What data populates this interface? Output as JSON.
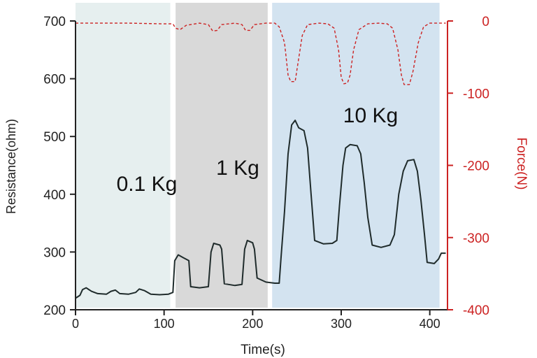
{
  "chart_data": {
    "type": "line",
    "xlabel": "Time(s)",
    "ylabel_left": "Resistance(ohm)",
    "ylabel_right": "Force(N)",
    "xlim": [
      0,
      420
    ],
    "ylim_left": [
      200,
      700
    ],
    "ylim_right": [
      -400,
      0
    ],
    "x_ticks": [
      0,
      100,
      200,
      300,
      400
    ],
    "y_left_ticks": [
      200,
      300,
      400,
      500,
      600,
      700
    ],
    "y_right_ticks": [
      0,
      -100,
      -200,
      -300,
      -400
    ],
    "grid": false,
    "regions": [
      {
        "label": "0.1 Kg",
        "x_start": 0,
        "x_end": 107,
        "color": "#e6efef"
      },
      {
        "label": "1 Kg",
        "x_start": 113,
        "x_end": 217,
        "color": "#d9d9d9"
      },
      {
        "label": "10 Kg",
        "x_start": 222,
        "x_end": 411,
        "color": "#d3e3f0"
      }
    ],
    "series": [
      {
        "axis": "left",
        "color": "#1f2b2b",
        "style": "solid",
        "points": [
          [
            0,
            220
          ],
          [
            5,
            225
          ],
          [
            8,
            235
          ],
          [
            12,
            238
          ],
          [
            18,
            232
          ],
          [
            25,
            228
          ],
          [
            35,
            227
          ],
          [
            40,
            232
          ],
          [
            45,
            234
          ],
          [
            50,
            228
          ],
          [
            60,
            227
          ],
          [
            68,
            230
          ],
          [
            72,
            236
          ],
          [
            78,
            233
          ],
          [
            85,
            227
          ],
          [
            95,
            226
          ],
          [
            105,
            227
          ],
          [
            110,
            230
          ],
          [
            112,
            285
          ],
          [
            116,
            295
          ],
          [
            122,
            290
          ],
          [
            128,
            285
          ],
          [
            130,
            240
          ],
          [
            140,
            238
          ],
          [
            150,
            240
          ],
          [
            153,
            300
          ],
          [
            156,
            315
          ],
          [
            163,
            312
          ],
          [
            165,
            305
          ],
          [
            168,
            245
          ],
          [
            180,
            242
          ],
          [
            188,
            244
          ],
          [
            191,
            305
          ],
          [
            194,
            320
          ],
          [
            200,
            316
          ],
          [
            202,
            305
          ],
          [
            205,
            255
          ],
          [
            215,
            248
          ],
          [
            225,
            246
          ],
          [
            230,
            246
          ],
          [
            232,
            290
          ],
          [
            236,
            370
          ],
          [
            240,
            470
          ],
          [
            244,
            520
          ],
          [
            248,
            528
          ],
          [
            252,
            515
          ],
          [
            258,
            510
          ],
          [
            262,
            480
          ],
          [
            266,
            400
          ],
          [
            270,
            320
          ],
          [
            280,
            314
          ],
          [
            290,
            315
          ],
          [
            295,
            320
          ],
          [
            298,
            380
          ],
          [
            302,
            450
          ],
          [
            305,
            480
          ],
          [
            310,
            486
          ],
          [
            318,
            484
          ],
          [
            322,
            470
          ],
          [
            326,
            420
          ],
          [
            330,
            360
          ],
          [
            335,
            312
          ],
          [
            345,
            308
          ],
          [
            355,
            312
          ],
          [
            360,
            330
          ],
          [
            365,
            400
          ],
          [
            370,
            440
          ],
          [
            375,
            458
          ],
          [
            382,
            460
          ],
          [
            386,
            440
          ],
          [
            390,
            390
          ],
          [
            394,
            330
          ],
          [
            397,
            282
          ],
          [
            405,
            280
          ],
          [
            410,
            288
          ],
          [
            413,
            298
          ],
          [
            418,
            298
          ]
        ]
      },
      {
        "axis": "right",
        "color": "#cc2222",
        "style": "dashed",
        "points": [
          [
            0,
            -3
          ],
          [
            30,
            -3
          ],
          [
            60,
            -3
          ],
          [
            100,
            -4
          ],
          [
            110,
            -4
          ],
          [
            113,
            -10
          ],
          [
            118,
            -12
          ],
          [
            125,
            -6
          ],
          [
            140,
            -3
          ],
          [
            150,
            -5
          ],
          [
            155,
            -14
          ],
          [
            160,
            -13
          ],
          [
            165,
            -5
          ],
          [
            180,
            -3
          ],
          [
            188,
            -5
          ],
          [
            192,
            -13
          ],
          [
            197,
            -13
          ],
          [
            202,
            -5
          ],
          [
            215,
            -3
          ],
          [
            225,
            -3
          ],
          [
            230,
            -8
          ],
          [
            236,
            -30
          ],
          [
            240,
            -75
          ],
          [
            243,
            -84
          ],
          [
            248,
            -84
          ],
          [
            251,
            -60
          ],
          [
            256,
            -20
          ],
          [
            262,
            -5
          ],
          [
            275,
            -3
          ],
          [
            285,
            -4
          ],
          [
            292,
            -10
          ],
          [
            297,
            -40
          ],
          [
            300,
            -78
          ],
          [
            303,
            -87
          ],
          [
            307,
            -86
          ],
          [
            310,
            -75
          ],
          [
            314,
            -40
          ],
          [
            320,
            -12
          ],
          [
            330,
            -4
          ],
          [
            342,
            -3
          ],
          [
            352,
            -4
          ],
          [
            358,
            -10
          ],
          [
            364,
            -40
          ],
          [
            368,
            -75
          ],
          [
            371,
            -88
          ],
          [
            377,
            -88
          ],
          [
            381,
            -70
          ],
          [
            387,
            -30
          ],
          [
            393,
            -8
          ],
          [
            400,
            -3
          ],
          [
            410,
            -3
          ],
          [
            418,
            -3
          ]
        ]
      }
    ]
  }
}
